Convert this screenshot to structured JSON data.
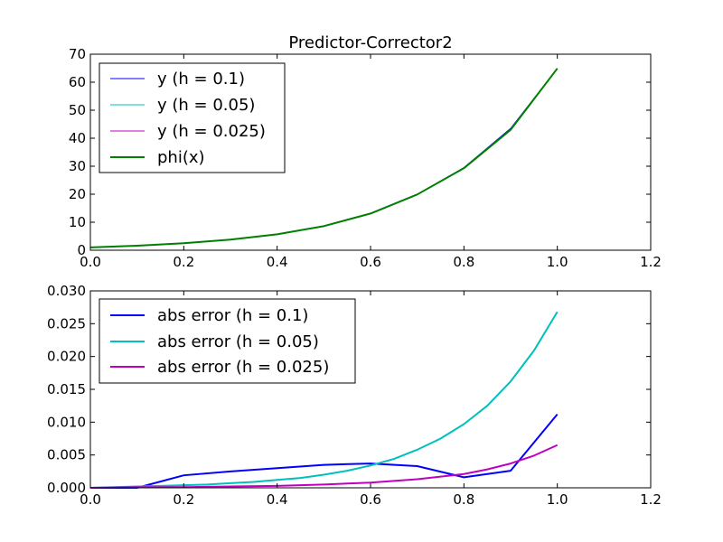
{
  "figure": {
    "background": "#ffffff"
  },
  "chart_data": [
    {
      "type": "line",
      "title": "Predictor-Corrector2",
      "xlabel": "",
      "ylabel": "",
      "xlim": [
        0,
        1.2
      ],
      "ylim": [
        0,
        70
      ],
      "xticks": [
        0,
        0.2,
        0.4,
        0.6,
        0.8,
        1.0,
        1.2
      ],
      "xtick_labels": [
        "0.0",
        "0.2",
        "0.4",
        "0.6",
        "0.8",
        "1.0",
        "1.2"
      ],
      "yticks": [
        0,
        10,
        20,
        30,
        40,
        50,
        60,
        70
      ],
      "ytick_labels": [
        "0",
        "10",
        "20",
        "30",
        "40",
        "50",
        "60",
        "70"
      ],
      "grid": false,
      "legend_position": "top-left",
      "series": [
        {
          "name": "y (h = 0.1)",
          "color": "#0000ff",
          "line_width": 1,
          "x": [
            0,
            0.1,
            0.2,
            0.3,
            0.4,
            0.5,
            0.6,
            0.7,
            0.8,
            0.9,
            1.0
          ],
          "y": [
            1.0,
            1.6,
            2.6,
            3.8,
            5.7,
            8.7,
            13.2,
            20.0,
            29.5,
            43.5,
            64.9
          ]
        },
        {
          "name": "y (h = 0.05)",
          "color": "#00bfbf",
          "line_width": 1,
          "x": [
            0,
            0.1,
            0.2,
            0.3,
            0.4,
            0.5,
            0.6,
            0.7,
            0.8,
            0.9,
            1.0
          ],
          "y": [
            1.0,
            1.6,
            2.5,
            3.8,
            5.7,
            8.6,
            13.1,
            19.9,
            29.3,
            43.0,
            64.9
          ]
        },
        {
          "name": "y (h = 0.025)",
          "color": "#bf00bf",
          "line_width": 1,
          "x": [
            0,
            0.1,
            0.2,
            0.3,
            0.4,
            0.5,
            0.6,
            0.7,
            0.8,
            0.9,
            1.0
          ],
          "y": [
            1.0,
            1.6,
            2.5,
            3.8,
            5.7,
            8.6,
            13.1,
            19.9,
            29.3,
            43.0,
            64.9
          ]
        },
        {
          "name": "phi(x)",
          "color": "#008000",
          "line_width": 2,
          "x": [
            0,
            0.1,
            0.2,
            0.3,
            0.4,
            0.5,
            0.6,
            0.7,
            0.8,
            0.9,
            1.0
          ],
          "y": [
            1.0,
            1.6,
            2.5,
            3.8,
            5.7,
            8.6,
            13.1,
            19.9,
            29.3,
            43.0,
            64.9
          ]
        }
      ]
    },
    {
      "type": "line",
      "title": "",
      "xlabel": "",
      "ylabel": "",
      "xlim": [
        0,
        1.2
      ],
      "ylim": [
        0,
        0.03
      ],
      "xticks": [
        0,
        0.2,
        0.4,
        0.6,
        0.8,
        1.0,
        1.2
      ],
      "xtick_labels": [
        "0.0",
        "0.2",
        "0.4",
        "0.6",
        "0.8",
        "1.0",
        "1.2"
      ],
      "yticks": [
        0,
        0.005,
        0.01,
        0.015,
        0.02,
        0.025,
        0.03
      ],
      "ytick_labels": [
        "0.000",
        "0.005",
        "0.010",
        "0.015",
        "0.020",
        "0.025",
        "0.030"
      ],
      "grid": false,
      "legend_position": "top-left",
      "series": [
        {
          "name": "abs error (h = 0.1)",
          "color": "#0000ff",
          "line_width": 2,
          "x": [
            0,
            0.1,
            0.2,
            0.3,
            0.4,
            0.5,
            0.6,
            0.7,
            0.8,
            0.9,
            1.0
          ],
          "y": [
            0,
            0,
            0.0019,
            0.0025,
            0.003,
            0.0035,
            0.0037,
            0.0033,
            0.0016,
            0.0026,
            0.0112
          ]
        },
        {
          "name": "abs error (h = 0.05)",
          "color": "#00bfbf",
          "line_width": 2,
          "x": [
            0,
            0.05,
            0.1,
            0.15,
            0.2,
            0.25,
            0.3,
            0.35,
            0.4,
            0.45,
            0.5,
            0.55,
            0.6,
            0.65,
            0.7,
            0.75,
            0.8,
            0.85,
            0.9,
            0.95,
            1.0
          ],
          "y": [
            0,
            0.0001,
            0.0002,
            0.0003,
            0.0004,
            0.0005,
            0.0007,
            0.0009,
            0.0012,
            0.0015,
            0.002,
            0.0026,
            0.0034,
            0.0044,
            0.0058,
            0.0075,
            0.0097,
            0.0125,
            0.0162,
            0.0209,
            0.0268
          ]
        },
        {
          "name": "abs error (h = 0.025)",
          "color": "#bf00bf",
          "line_width": 2,
          "x": [
            0,
            0.1,
            0.2,
            0.3,
            0.4,
            0.5,
            0.6,
            0.7,
            0.8,
            0.85,
            0.9,
            0.95,
            1.0
          ],
          "y": [
            0,
            0.0001,
            0.0001,
            0.0002,
            0.0003,
            0.0005,
            0.0008,
            0.0013,
            0.0021,
            0.0028,
            0.0037,
            0.0049,
            0.0065
          ]
        }
      ]
    }
  ]
}
